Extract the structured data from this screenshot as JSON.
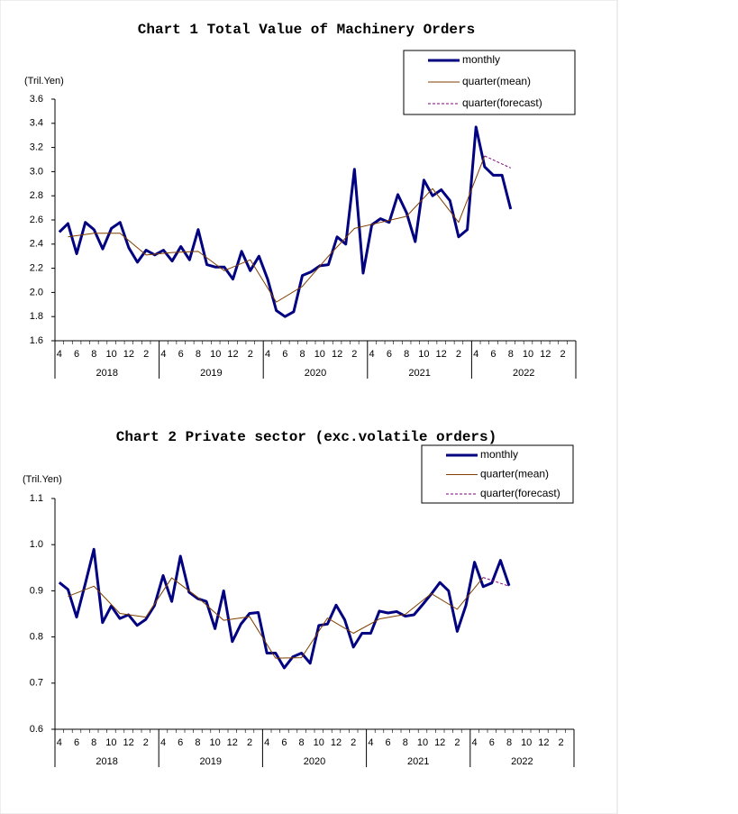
{
  "chart_data": [
    {
      "type": "line",
      "title": "Chart 1 Total Value of Machinery Orders",
      "y_unit": "(Tril.Yen)",
      "categories": [
        "4",
        null,
        "6",
        null,
        "8",
        null,
        "10",
        null,
        "12",
        null,
        "2",
        null,
        "4",
        null,
        "6",
        null,
        "8",
        null,
        "10",
        null,
        "12",
        null,
        "2",
        null,
        "4",
        null,
        "6",
        null,
        "8",
        null,
        "10",
        null,
        "12",
        null,
        "2",
        null,
        "4",
        null,
        "6",
        null,
        "8",
        null,
        "10",
        null,
        "12",
        null,
        "2",
        null,
        "4",
        null,
        "6",
        null,
        "8",
        null,
        "10",
        null,
        "12",
        null,
        "2",
        null
      ],
      "years": [
        "2018",
        "2019",
        "2020",
        "2021",
        "2022"
      ],
      "ylim": [
        1.6,
        3.6
      ],
      "yticks": [
        1.6,
        1.8,
        {
          "value": 2,
          "label": "2.0"
        },
        2.2,
        2.4,
        2.6,
        2.8,
        {
          "value": 3,
          "label": "3.0"
        },
        3.2,
        3.4,
        3.6
      ],
      "legend": "upper right",
      "series": [
        {
          "name": "monthly",
          "color": "#000080",
          "width": 3,
          "style": "solid",
          "connect_gaps": false,
          "values": [
            2.5,
            2.57,
            2.32,
            2.58,
            2.52,
            2.36,
            2.53,
            2.58,
            2.37,
            2.25,
            2.35,
            2.31,
            2.35,
            2.26,
            2.38,
            2.27,
            2.52,
            2.23,
            2.21,
            2.21,
            2.11,
            2.34,
            2.18,
            2.3,
            2.11,
            1.85,
            1.8,
            1.84,
            2.14,
            2.17,
            2.22,
            2.23,
            2.46,
            2.4,
            3.02,
            2.16,
            2.56,
            2.61,
            2.58,
            2.81,
            2.66,
            2.42,
            2.93,
            2.8,
            2.85,
            2.76,
            2.46,
            2.52,
            3.37,
            3.04,
            2.97,
            2.97,
            2.69,
            null,
            null,
            null,
            null,
            null,
            null,
            null
          ]
        },
        {
          "name": "quarter(mean)",
          "color": "#7f3f00",
          "width": 1,
          "style": "solid",
          "connect_gaps": true,
          "values": [
            null,
            2.46,
            null,
            null,
            2.49,
            null,
            null,
            2.49,
            null,
            null,
            2.31,
            null,
            null,
            2.33,
            null,
            null,
            2.34,
            null,
            null,
            2.18,
            null,
            null,
            2.27,
            null,
            null,
            1.92,
            null,
            null,
            2.05,
            null,
            null,
            2.3,
            null,
            null,
            2.53,
            null,
            null,
            2.58,
            null,
            null,
            2.63,
            null,
            null,
            2.86,
            null,
            null,
            2.58,
            null,
            null,
            3.13,
            null,
            null,
            null,
            null,
            null,
            null,
            null,
            null,
            null,
            null
          ]
        },
        {
          "name": "quarter(forecast)",
          "color": "#800080",
          "width": 1,
          "style": "dashed",
          "connect_gaps": true,
          "values": [
            null,
            null,
            null,
            null,
            null,
            null,
            null,
            null,
            null,
            null,
            null,
            null,
            null,
            null,
            null,
            null,
            null,
            null,
            null,
            null,
            null,
            null,
            null,
            null,
            null,
            null,
            null,
            null,
            null,
            null,
            null,
            null,
            null,
            null,
            null,
            null,
            null,
            null,
            null,
            null,
            null,
            null,
            null,
            null,
            null,
            null,
            null,
            null,
            null,
            3.13,
            null,
            null,
            3.03,
            null,
            null,
            null,
            null,
            null,
            null,
            null
          ]
        }
      ]
    },
    {
      "type": "line",
      "title": "Chart 2 Private sector (exc.volatile orders)",
      "y_unit": "(Tril.Yen)",
      "categories": [
        "4",
        null,
        "6",
        null,
        "8",
        null,
        "10",
        null,
        "12",
        null,
        "2",
        null,
        "4",
        null,
        "6",
        null,
        "8",
        null,
        "10",
        null,
        "12",
        null,
        "2",
        null,
        "4",
        null,
        "6",
        null,
        "8",
        null,
        "10",
        null,
        "12",
        null,
        "2",
        null,
        "4",
        null,
        "6",
        null,
        "8",
        null,
        "10",
        null,
        "12",
        null,
        "2",
        null,
        "4",
        null,
        "6",
        null,
        "8",
        null,
        "10",
        null,
        "12",
        null,
        "2",
        null
      ],
      "years": [
        "2018",
        "2019",
        "2020",
        "2021",
        "2022"
      ],
      "ylim": [
        0.6,
        1.1
      ],
      "yticks": [
        0.6,
        0.7,
        0.8,
        0.9,
        {
          "value": 1,
          "label": "1.0"
        },
        1.1
      ],
      "legend": "upper right",
      "series": [
        {
          "name": "monthly",
          "color": "#000080",
          "width": 3,
          "style": "solid",
          "connect_gaps": false,
          "values": [
            0.918,
            0.903,
            0.843,
            0.915,
            0.99,
            0.831,
            0.867,
            0.84,
            0.848,
            0.825,
            0.838,
            0.868,
            0.933,
            0.877,
            0.975,
            0.897,
            0.883,
            0.877,
            0.818,
            0.9,
            0.79,
            0.828,
            0.851,
            0.853,
            0.765,
            0.765,
            0.733,
            0.757,
            0.765,
            0.743,
            0.825,
            0.828,
            0.869,
            0.837,
            0.778,
            0.808,
            0.808,
            0.856,
            0.852,
            0.855,
            0.845,
            0.848,
            0.87,
            0.893,
            0.918,
            0.9,
            0.812,
            0.868,
            0.962,
            0.909,
            0.917,
            0.966,
            0.911,
            null,
            null,
            null,
            null,
            null,
            null,
            null
          ]
        },
        {
          "name": "quarter(mean)",
          "color": "#7f3f00",
          "width": 1,
          "style": "solid",
          "connect_gaps": true,
          "values": [
            null,
            0.888,
            null,
            null,
            0.91,
            null,
            null,
            0.851,
            null,
            null,
            0.843,
            null,
            null,
            0.928,
            null,
            null,
            0.886,
            null,
            null,
            0.836,
            null,
            null,
            0.844,
            null,
            null,
            0.754,
            null,
            null,
            0.755,
            null,
            null,
            0.841,
            null,
            null,
            0.808,
            null,
            null,
            0.839,
            null,
            null,
            0.849,
            null,
            null,
            0.894,
            null,
            null,
            0.86,
            null,
            null,
            0.929,
            null,
            null,
            null,
            null,
            null,
            null,
            null,
            null,
            null,
            null
          ]
        },
        {
          "name": "quarter(forecast)",
          "color": "#800080",
          "width": 1,
          "style": "dashed",
          "connect_gaps": true,
          "values": [
            null,
            null,
            null,
            null,
            null,
            null,
            null,
            null,
            null,
            null,
            null,
            null,
            null,
            null,
            null,
            null,
            null,
            null,
            null,
            null,
            null,
            null,
            null,
            null,
            null,
            null,
            null,
            null,
            null,
            null,
            null,
            null,
            null,
            null,
            null,
            null,
            null,
            null,
            null,
            null,
            null,
            null,
            null,
            null,
            null,
            null,
            null,
            null,
            null,
            0.929,
            null,
            null,
            0.91,
            null,
            null,
            null,
            null,
            null,
            null,
            null
          ]
        }
      ]
    }
  ]
}
